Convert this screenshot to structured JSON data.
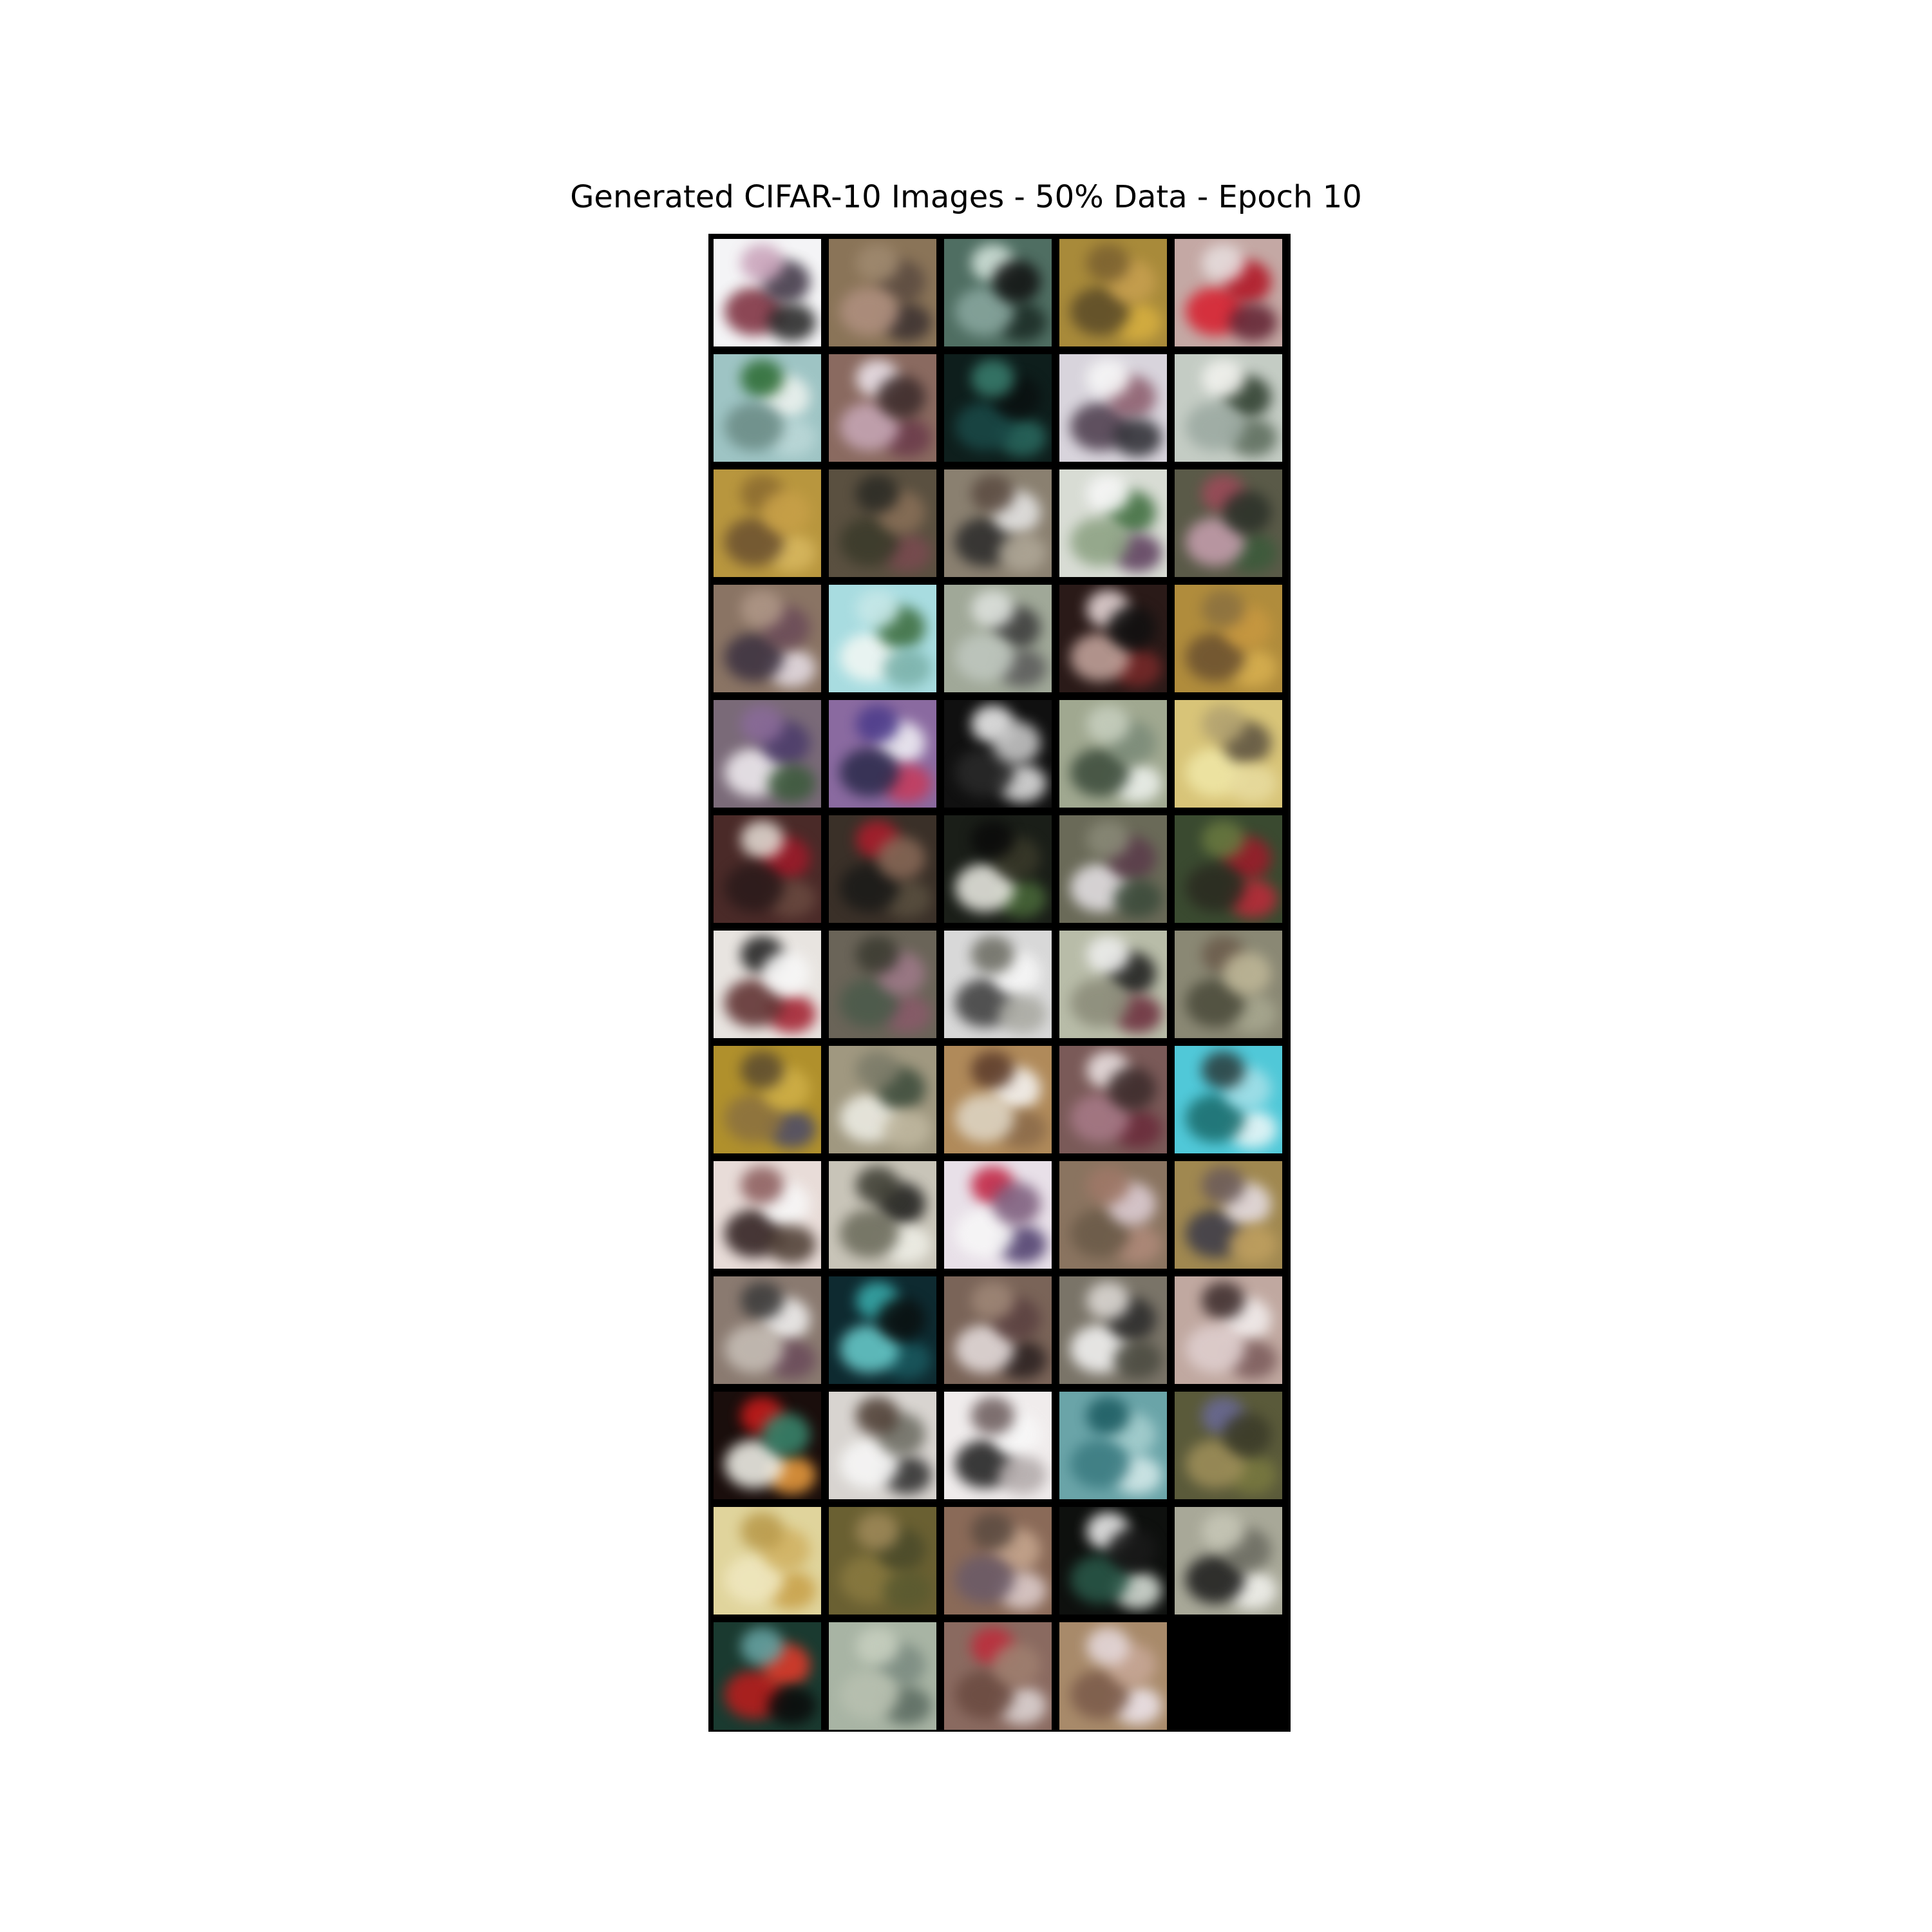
{
  "title": "Generated CIFAR-10 Images - 50% Data - Epoch 10",
  "grid": {
    "rows": 13,
    "cols": 5,
    "tiles": [
      {
        "bg": "#f4f4f6",
        "spots": [
          "#7a2a3a",
          "#3a3040",
          "#c8a0b8",
          "#202020"
        ]
      },
      {
        "bg": "#8a7458",
        "spots": [
          "#5a4a40",
          "#a08a70",
          "#3a3030",
          "#b09080"
        ]
      },
      {
        "bg": "#4f6e62",
        "spots": [
          "#d8e8e0",
          "#1a2a24",
          "#8aa8a0",
          "#101010"
        ]
      },
      {
        "bg": "#a88a3a",
        "spots": [
          "#d8b040",
          "#5a4a28",
          "#c8a050",
          "#7a6030"
        ]
      },
      {
        "bg": "#c4a8a4",
        "spots": [
          "#d81c2c",
          "#b01020",
          "#e8e0e0",
          "#602030"
        ]
      },
      {
        "bg": "#9ec4c4",
        "spots": [
          "#f0f4f0",
          "#2a6a30",
          "#bcd8d8",
          "#6a8a84"
        ]
      },
      {
        "bg": "#8a6a60",
        "spots": [
          "#f0e8f0",
          "#6a3a4a",
          "#c8a8b8",
          "#3a2a2a"
        ]
      },
      {
        "bg": "#0e1e1c",
        "spots": [
          "#2a6a60",
          "#1a4a48",
          "#0a1010",
          "#3a8070"
        ]
      },
      {
        "bg": "#d8d4dc",
        "spots": [
          "#4a3a4a",
          "#8a5a6a",
          "#f8f8f8",
          "#2a2a30"
        ]
      },
      {
        "bg": "#c4ccc4",
        "spots": [
          "#2a3a2a",
          "#f4f4f0",
          "#5a6a5a",
          "#9aa8a0"
        ]
      },
      {
        "bg": "#b8963e",
        "spots": [
          "#8a6a30",
          "#d8b860",
          "#6a5030",
          "#c8a048"
        ]
      },
      {
        "bg": "#5a5040",
        "spots": [
          "#7a4a50",
          "#3a3a2a",
          "#8a7058",
          "#2a2a24"
        ]
      },
      {
        "bg": "#8a8070",
        "spots": [
          "#2a2a2a",
          "#e8e8e8",
          "#5a4a40",
          "#b0a898"
        ]
      },
      {
        "bg": "#d8dcd4",
        "spots": [
          "#3a6a3a",
          "#f8f8f8",
          "#5a3a5a",
          "#8aa080"
        ]
      },
      {
        "bg": "#5a5a48",
        "spots": [
          "#a04a5a",
          "#3a5a3a",
          "#c8a0b0",
          "#2a3028"
        ]
      },
      {
        "bg": "#8a7464",
        "spots": [
          "#e8e0e8",
          "#3a3040",
          "#6a4a58",
          "#b09888"
        ]
      },
      {
        "bg": "#a8dce0",
        "spots": [
          "#f4f8f4",
          "#3a6a3a",
          "#c8e8e8",
          "#7ab0a8"
        ]
      },
      {
        "bg": "#a0a898",
        "spots": [
          "#3a3a3a",
          "#e0e4e0",
          "#5a5a5a",
          "#c0c8c0"
        ]
      },
      {
        "bg": "#2a1a18",
        "spots": [
          "#f0e0e0",
          "#7a2a2a",
          "#c8a8a0",
          "#101010"
        ]
      },
      {
        "bg": "#b08c3c",
        "spots": [
          "#d8b050",
          "#6a5030",
          "#c89840",
          "#8a7040"
        ]
      },
      {
        "bg": "#7a6a78",
        "spots": [
          "#f4f0f4",
          "#4a3a6a",
          "#8a6a9a",
          "#3a5a3a"
        ]
      },
      {
        "bg": "#8a6aa0",
        "spots": [
          "#f4f4f8",
          "#4a3a8a",
          "#c83a5a",
          "#2a2a4a"
        ]
      },
      {
        "bg": "#101010",
        "spots": [
          "#f8f8f8",
          "#e8e8e8",
          "#2a2a2a",
          "#d0d0d0"
        ]
      },
      {
        "bg": "#a0a890",
        "spots": [
          "#f0f4f0",
          "#3a4a3a",
          "#7a8a78",
          "#c8d0c0"
        ]
      },
      {
        "bg": "#d8c478",
        "spots": [
          "#f0e8a8",
          "#5a5040",
          "#b0a070",
          "#e8dca0"
        ]
      },
      {
        "bg": "#4a2a28",
        "spots": [
          "#a01a2a",
          "#e8e0d8",
          "#6a4a40",
          "#2a1a1a"
        ]
      },
      {
        "bg": "#3a3028",
        "spots": [
          "#b01c2c",
          "#5a5040",
          "#1a1a18",
          "#8a6a58"
        ]
      },
      {
        "bg": "#1a1e18",
        "spots": [
          "#4a6a3a",
          "#f0f0e8",
          "#3a3a2a",
          "#0a0a0a"
        ]
      },
      {
        "bg": "#6a6a58",
        "spots": [
          "#e8e4e8",
          "#5a3a4a",
          "#8a8a78",
          "#3a4a3a"
        ]
      },
      {
        "bg": "#3a4a30",
        "spots": [
          "#a01a2a",
          "#6a7a40",
          "#c02a3a",
          "#2a2a20"
        ]
      },
      {
        "bg": "#e8e4e0",
        "spots": [
          "#1a1a1a",
          "#a01a2a",
          "#5a2a2a",
          "#f8f8f8"
        ]
      },
      {
        "bg": "#6a6458",
        "spots": [
          "#8a5a6a",
          "#4a5a4a",
          "#a07a8a",
          "#3a3a30"
        ]
      },
      {
        "bg": "#d8d8d8",
        "spots": [
          "#3a3a3a",
          "#f8f8f8",
          "#6a6a60",
          "#a8a8a0"
        ]
      },
      {
        "bg": "#b8bca8",
        "spots": [
          "#1a1a1a",
          "#f0f0f0",
          "#6a2a3a",
          "#8a8a78"
        ]
      },
      {
        "bg": "#8a8874",
        "spots": [
          "#6a5a4a",
          "#a8a890",
          "#4a4a3a",
          "#c0b898"
        ]
      },
      {
        "bg": "#b0902c",
        "spots": [
          "#4a4a6a",
          "#8a7040",
          "#d0b048",
          "#5a4a30"
        ]
      },
      {
        "bg": "#a09880",
        "spots": [
          "#f0f0e8",
          "#3a4a3a",
          "#7a7a68",
          "#c0b8a0"
        ]
      },
      {
        "bg": "#b08a5a",
        "spots": [
          "#f8f8f8",
          "#5a3a2a",
          "#8a6a4a",
          "#e0d8c8"
        ]
      },
      {
        "bg": "#7a5a58",
        "spots": [
          "#f0e8e8",
          "#6a2a3a",
          "#a87a88",
          "#3a2a2a"
        ]
      },
      {
        "bg": "#50c8d8",
        "spots": [
          "#f0f8f8",
          "#1a6a6a",
          "#a8e0e8",
          "#2a3a3a"
        ]
      },
      {
        "bg": "#e8dcd8",
        "spots": [
          "#2a1a1a",
          "#f8f8f8",
          "#8a5a5a",
          "#4a3a30"
        ]
      },
      {
        "bg": "#c8c4b8",
        "spots": [
          "#1a1a18",
          "#3a3a30",
          "#f0f0e8",
          "#6a6a5a"
        ]
      },
      {
        "bg": "#e8e0e8",
        "spots": [
          "#c01c3c",
          "#4a3a6a",
          "#f8f8f8",
          "#7a5a7a"
        ]
      },
      {
        "bg": "#8a7460",
        "spots": [
          "#b08a7a",
          "#6a5a48",
          "#e0d0d8",
          "#a07868"
        ]
      },
      {
        "bg": "#a08850",
        "spots": [
          "#3a3a4a",
          "#e8e0e8",
          "#6a5a5a",
          "#c0a060"
        ]
      },
      {
        "bg": "#8a7a70",
        "spots": [
          "#f4f4f4",
          "#3a3a3a",
          "#6a4a5a",
          "#c8c0b8"
        ]
      },
      {
        "bg": "#0e2a30",
        "spots": [
          "#3ab0b0",
          "#1a5a60",
          "#6ad0d0",
          "#0a1010"
        ]
      },
      {
        "bg": "#7a6458",
        "spots": [
          "#2a2020",
          "#e8e0e0",
          "#5a4040",
          "#a08878"
        ]
      },
      {
        "bg": "#7a7468",
        "spots": [
          "#f8f8f8",
          "#2a2a2a",
          "#e0dcd8",
          "#4a4a40"
        ]
      },
      {
        "bg": "#c0a8a0",
        "spots": [
          "#f4f0f0",
          "#3a2a2a",
          "#7a5a5a",
          "#e0d0d0"
        ]
      },
      {
        "bg": "#1a0e0c",
        "spots": [
          "#d01c1c",
          "#f0a040",
          "#f8f8f0",
          "#3a8a70"
        ]
      },
      {
        "bg": "#d8d4d0",
        "spots": [
          "#2a2a2a",
          "#f8f8f8",
          "#6a6a60",
          "#4a3a30"
        ]
      },
      {
        "bg": "#f0ecec",
        "spots": [
          "#1a1a1a",
          "#f8f8f8",
          "#6a5a5a",
          "#b0a8a8"
        ]
      },
      {
        "bg": "#6aa4a8",
        "spots": [
          "#a8d0d0",
          "#1a5a60",
          "#d8ecec",
          "#3a7a80"
        ]
      },
      {
        "bg": "#5a5a3a",
        "spots": [
          "#6a6a9a",
          "#7a7a40",
          "#a0905a",
          "#3a3a28"
        ]
      },
      {
        "bg": "#e0d49c",
        "spots": [
          "#c8a048",
          "#f0e8c0",
          "#d0b060",
          "#b89848"
        ]
      },
      {
        "bg": "#6a6032",
        "spots": [
          "#8a7a40",
          "#4a4a2a",
          "#a08a5a",
          "#5a5a30"
        ]
      },
      {
        "bg": "#8a6a58",
        "spots": [
          "#c8a890",
          "#5a4a40",
          "#e0d0d0",
          "#6a5a68"
        ]
      },
      {
        "bg": "#0e100e",
        "spots": [
          "#f8f8f8",
          "#e0e8e0",
          "#2a5a4a",
          "#1a1a1a"
        ]
      },
      {
        "bg": "#a8a898",
        "spots": [
          "#f4f4f0",
          "#1a1a1a",
          "#6a6a60",
          "#c8c8b8"
        ]
      },
      {
        "bg": "#1a3a30",
        "spots": [
          "#c01c1c",
          "#e83a2a",
          "#6aa8a8",
          "#0a0a0a"
        ]
      },
      {
        "bg": "#a8b4a4",
        "spots": [
          "#7a8a80",
          "#c8d0c0",
          "#5a6a60",
          "#b8c0b0"
        ]
      },
      {
        "bg": "#8a6a60",
        "spots": [
          "#c02a3a",
          "#e0d8d8",
          "#6a4a40",
          "#a08070"
        ]
      },
      {
        "bg": "#a88a6a",
        "spots": [
          "#f0e8f0",
          "#7a5a4a",
          "#c8a898",
          "#e8dce0"
        ]
      },
      {
        "bg": "#000000",
        "spots": []
      }
    ]
  }
}
